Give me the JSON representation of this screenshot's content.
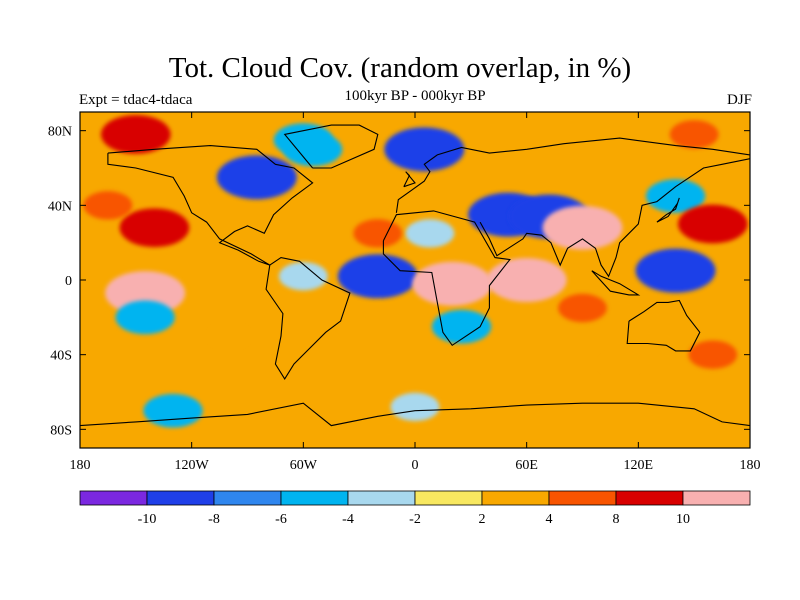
{
  "title": "Tot. Cloud Cov. (random overlap, in %)",
  "left_label": "Expt = tdac4-tdaca",
  "center_label": "100kyr BP - 000kyr BP",
  "right_label": "DJF",
  "map": {
    "lon_range": [
      -180,
      180
    ],
    "lat_range": [
      -90,
      90
    ],
    "lat_ticks": [
      {
        "value": 80,
        "label": "80N"
      },
      {
        "value": 40,
        "label": "40N"
      },
      {
        "value": 0,
        "label": "0"
      },
      {
        "value": -40,
        "label": "40S"
      },
      {
        "value": -80,
        "label": "80S"
      }
    ],
    "lon_ticks": [
      {
        "value": -180,
        "label": "180"
      },
      {
        "value": -120,
        "label": "120W"
      },
      {
        "value": -60,
        "label": "60W"
      },
      {
        "value": 0,
        "label": "0"
      },
      {
        "value": 60,
        "label": "60E"
      },
      {
        "value": 120,
        "label": "120E"
      },
      {
        "value": 180,
        "label": "180"
      }
    ]
  },
  "colorbar": {
    "colors": [
      "#7b28e0",
      "#1f3fe8",
      "#2f86ee",
      "#00b4f0",
      "#a8d8ee",
      "#f8e860",
      "#f8a800",
      "#f85400",
      "#d80000",
      "#f8b0b0"
    ],
    "labels": [
      "-10",
      "-8",
      "-6",
      "-4",
      "-2",
      "2",
      "4",
      "8",
      "10"
    ]
  },
  "chart_data": {
    "type": "heatmap",
    "title": "Tot. Cloud Cov. (random overlap, in %)",
    "subtitle": "100kyr BP - 000kyr BP",
    "xlabel": "",
    "ylabel": "",
    "xlim": [
      -180,
      180
    ],
    "ylim": [
      -90,
      90
    ],
    "contour_levels": [
      -10,
      -8,
      -6,
      -4,
      -2,
      2,
      4,
      8,
      10
    ],
    "regions": [
      {
        "lon": -85,
        "lat": 55,
        "value": -10
      },
      {
        "lon": -55,
        "lat": 70,
        "value": -6
      },
      {
        "lon": -60,
        "lat": 75,
        "value": -6
      },
      {
        "lon": 5,
        "lat": 70,
        "value": -10
      },
      {
        "lon": 50,
        "lat": 35,
        "value": -10
      },
      {
        "lon": 72,
        "lat": 34,
        "value": -10
      },
      {
        "lon": 90,
        "lat": 28,
        "value": 10
      },
      {
        "lon": 140,
        "lat": 5,
        "value": -10
      },
      {
        "lon": 140,
        "lat": 45,
        "value": -6
      },
      {
        "lon": -20,
        "lat": 2,
        "value": -10
      },
      {
        "lon": -60,
        "lat": 2,
        "value": -4
      },
      {
        "lon": 8,
        "lat": 25,
        "value": -4
      },
      {
        "lon": 60,
        "lat": 0,
        "value": 10
      },
      {
        "lon": 20,
        "lat": -2,
        "value": 10
      },
      {
        "lon": -145,
        "lat": -7,
        "value": 10
      },
      {
        "lon": -145,
        "lat": -20,
        "value": -6
      },
      {
        "lon": -140,
        "lat": 28,
        "value": 8
      },
      {
        "lon": -165,
        "lat": 40,
        "value": 4
      },
      {
        "lon": 160,
        "lat": 30,
        "value": 8
      },
      {
        "lon": -20,
        "lat": 25,
        "value": 4
      },
      {
        "lon": 90,
        "lat": -15,
        "value": 4
      },
      {
        "lon": -130,
        "lat": -70,
        "value": -6
      },
      {
        "lon": 0,
        "lat": -68,
        "value": -4
      },
      {
        "lon": -150,
        "lat": 78,
        "value": 8
      },
      {
        "lon": 150,
        "lat": 78,
        "value": 4
      },
      {
        "lon": 110,
        "lat": -45,
        "value": 2
      },
      {
        "lon": -100,
        "lat": -30,
        "value": 2
      },
      {
        "lon": 160,
        "lat": -40,
        "value": 4
      },
      {
        "lon": 25,
        "lat": -25,
        "value": -6
      }
    ]
  }
}
